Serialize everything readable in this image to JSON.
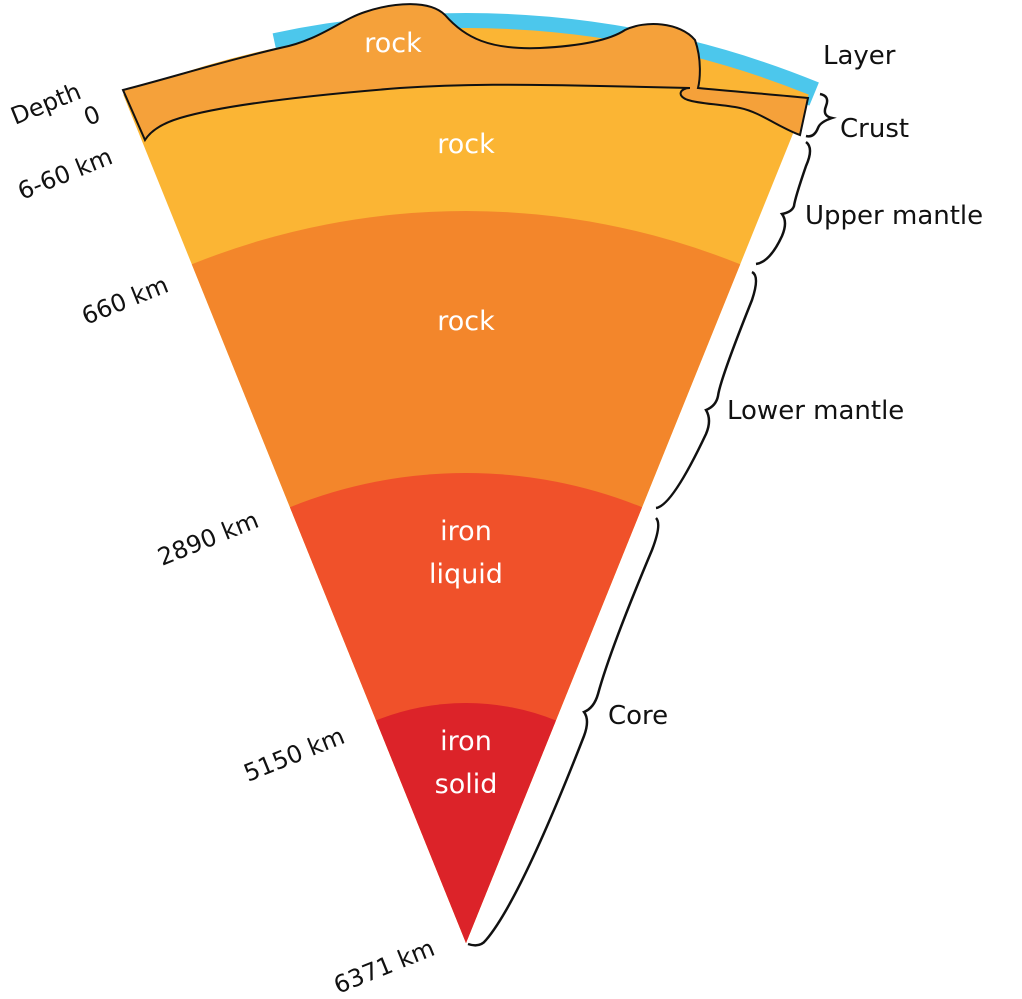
{
  "depth_heading": "Depth",
  "depths": [
    "0",
    "6-60 km",
    "660 km",
    "2890 km",
    "5150 km",
    "6371 km"
  ],
  "layer_heading": "Layer",
  "layers": [
    "Crust",
    "Upper mantle",
    "Lower mantle",
    "Core"
  ],
  "regions": [
    {
      "lines": [
        "rock"
      ]
    },
    {
      "lines": [
        "rock"
      ]
    },
    {
      "lines": [
        "rock"
      ]
    },
    {
      "lines": [
        "iron",
        "liquid"
      ]
    },
    {
      "lines": [
        "iron",
        "solid"
      ]
    }
  ]
}
